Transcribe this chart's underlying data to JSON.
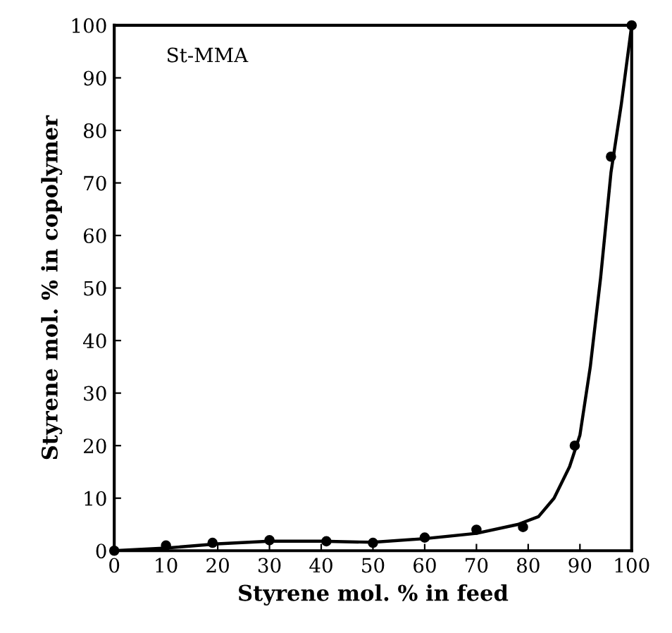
{
  "chart_data": {
    "type": "scatter",
    "xlabel": "Styrene mol. % in feed",
    "ylabel": "Styrene mol. % in copolymer",
    "annotations": [
      "St-MMA"
    ],
    "series": [
      {
        "color": "#000000",
        "marker": "circle",
        "x": [
          0,
          10,
          19,
          30,
          41,
          50,
          60,
          70,
          79,
          89,
          96,
          100
        ],
        "values": [
          0,
          1,
          1.5,
          2,
          1.8,
          1.5,
          2.5,
          4,
          4.5,
          20,
          75,
          100
        ]
      },
      {
        "type": "line",
        "color": "#000000",
        "line_style": "solid",
        "x": [
          0,
          10,
          20,
          30,
          40,
          50,
          60,
          70,
          78,
          82,
          85,
          88,
          90,
          92,
          94,
          96,
          98,
          100
        ],
        "values": [
          0,
          0.5,
          1.3,
          1.8,
          1.8,
          1.6,
          2.3,
          3.3,
          5,
          6.5,
          10,
          16,
          22,
          35,
          52,
          72,
          85,
          100
        ]
      }
    ],
    "xlim": [
      0,
      100
    ],
    "ylim": [
      0,
      100
    ],
    "xticks": [
      0,
      10,
      20,
      30,
      40,
      50,
      60,
      70,
      80,
      90,
      100
    ],
    "yticks": [
      0,
      10,
      20,
      30,
      40,
      50,
      60,
      70,
      80,
      90,
      100
    ],
    "grid": false,
    "legend": false
  }
}
